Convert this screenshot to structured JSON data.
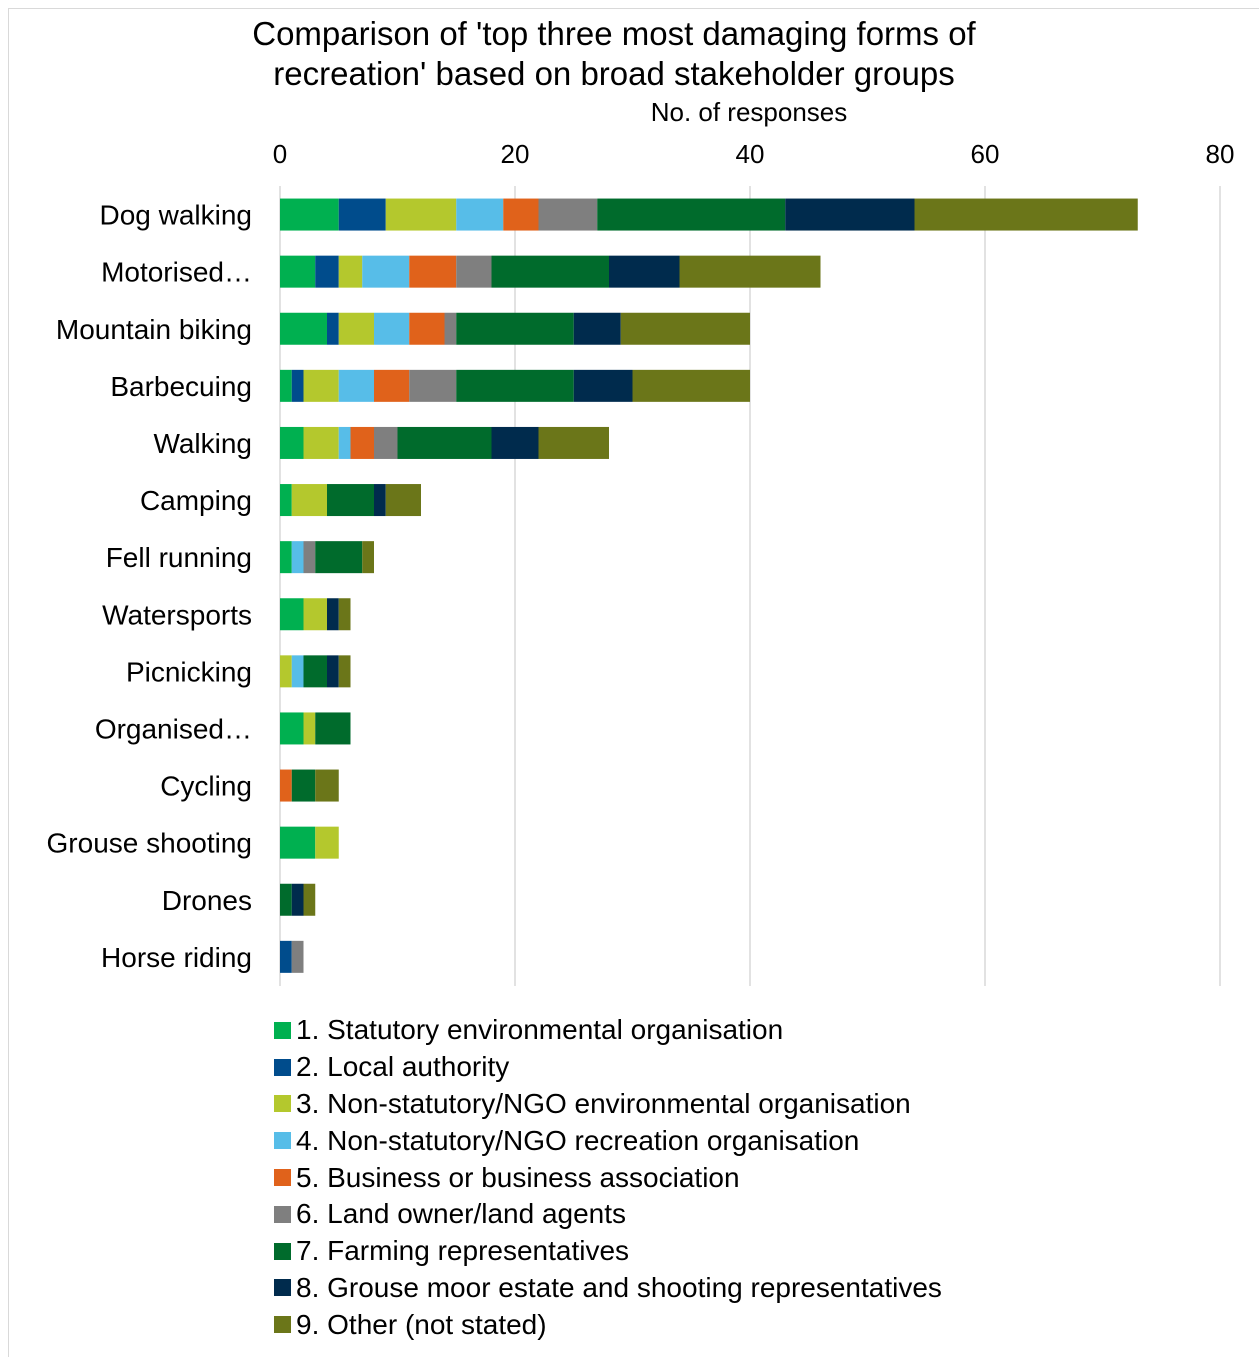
{
  "chart_data": {
    "type": "bar",
    "orientation": "horizontal",
    "stacked": true,
    "title": "Comparison of 'top three most damaging forms of recreation' based on broad stakeholder groups",
    "xlabel": "No. of responses",
    "ylabel": "",
    "xlim": [
      0,
      80
    ],
    "xticks": [
      0,
      20,
      40,
      60,
      80
    ],
    "x_axis_position": "top",
    "grid": "vertical",
    "legend_position": "bottom",
    "categories": [
      "Dog walking",
      "Motorised…",
      "Mountain biking",
      "Barbecuing",
      "Walking",
      "Camping",
      "Fell running",
      "Watersports",
      "Picnicking",
      "Organised…",
      "Cycling",
      "Grouse shooting",
      "Drones",
      "Horse riding"
    ],
    "series": [
      {
        "name": "1. Statutory environmental organisation",
        "color": "#00b050",
        "values": [
          5,
          3,
          4,
          1,
          2,
          1,
          1,
          2,
          0,
          2,
          0,
          3,
          0,
          0
        ]
      },
      {
        "name": "2. Local authority",
        "color": "#004c8c",
        "values": [
          4,
          2,
          1,
          1,
          0,
          0,
          0,
          0,
          0,
          0,
          0,
          0,
          0,
          1
        ]
      },
      {
        "name": "3. Non-statutory/NGO environmental organisation",
        "color": "#b4c82d",
        "values": [
          6,
          2,
          3,
          3,
          3,
          3,
          0,
          2,
          1,
          1,
          0,
          2,
          0,
          0
        ]
      },
      {
        "name": "4. Non-statutory/NGO recreation organisation",
        "color": "#57bde8",
        "values": [
          4,
          4,
          3,
          3,
          1,
          0,
          1,
          0,
          1,
          0,
          0,
          0,
          0,
          0
        ]
      },
      {
        "name": "5. Business or business association",
        "color": "#e0621b",
        "values": [
          3,
          4,
          3,
          3,
          2,
          0,
          0,
          0,
          0,
          0,
          1,
          0,
          0,
          0
        ]
      },
      {
        "name": "6. Land owner/land agents",
        "color": "#7f7f7f",
        "values": [
          5,
          3,
          1,
          4,
          2,
          0,
          1,
          0,
          0,
          0,
          0,
          0,
          0,
          1
        ]
      },
      {
        "name": "7. Farming representatives",
        "color": "#006b2c",
        "values": [
          16,
          10,
          10,
          10,
          8,
          4,
          4,
          0,
          2,
          3,
          2,
          0,
          1,
          0
        ]
      },
      {
        "name": "8. Grouse moor estate and shooting representatives",
        "color": "#002b4d",
        "values": [
          11,
          6,
          4,
          5,
          4,
          1,
          0,
          1,
          1,
          0,
          0,
          0,
          1,
          0
        ]
      },
      {
        "name": "9. Other (not stated)",
        "color": "#6b7619",
        "values": [
          19,
          12,
          11,
          10,
          6,
          3,
          1,
          1,
          1,
          0,
          2,
          0,
          1,
          0
        ]
      }
    ]
  }
}
